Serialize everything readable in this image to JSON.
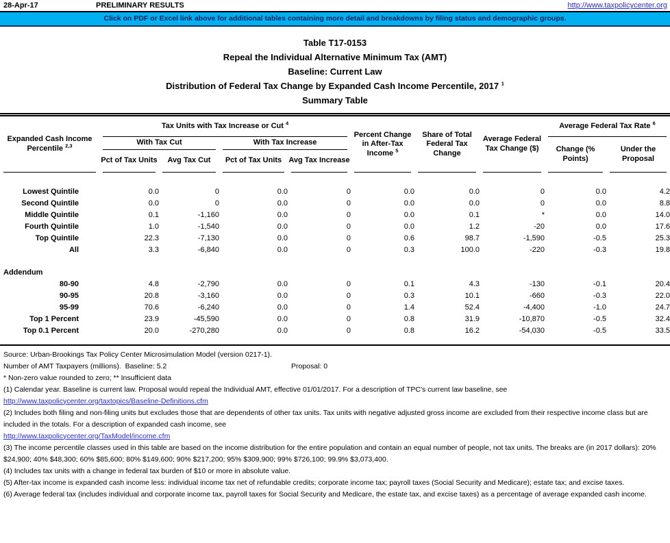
{
  "topbar": {
    "date": "28-Apr-17",
    "preliminary": "PRELIMINARY RESULTS",
    "url": "http://www.taxpolicycenter.org"
  },
  "banner": {
    "text": "Click on PDF or Excel link above for additional tables containing more detail and breakdowns by filing status and demographic groups.",
    "bg_color": "#00b0f0",
    "text_color": "#002060"
  },
  "title": {
    "line1": "Table T17-0153",
    "line2": "Repeal the Individual Alternative Minimum Tax (AMT)",
    "line3": "Baseline: Current Law",
    "line4": "Distribution of Federal Tax Change by Expanded Cash Income Percentile, 2017",
    "line4_sup": "1",
    "line5": "Summary Table"
  },
  "table": {
    "head": {
      "eci_line1": "Expanded Cash Income",
      "eci_line2": "Percentile",
      "eci_sup": "2,3",
      "tax_units_group": "Tax Units with Tax Increase or Cut",
      "tax_units_sup": "4",
      "with_tax_cut": "With Tax Cut",
      "with_tax_increase": "With Tax Increase",
      "pct_of_tax_units_cut": "Pct of Tax Units",
      "avg_tax_cut": "Avg Tax Cut",
      "pct_of_tax_units_inc": "Pct of Tax Units",
      "avg_tax_increase": "Avg Tax Increase",
      "pct_change": "Percent Change in After-Tax Income",
      "pct_change_sup": "5",
      "share_total": "Share of Total Federal Tax Change",
      "avg_fed_change": "Average Federal Tax Change ($)",
      "aftr_group": "Average Federal Tax Rate",
      "aftr_sup": "6",
      "rate_change": "Change (% Points)",
      "rate_under": "Under the Proposal"
    },
    "rows": [
      {
        "label": "Lowest Quintile",
        "cut_pct": "0.0",
        "cut_avg": "0",
        "inc_pct": "0.0",
        "inc_avg": "0",
        "ati_pct": "0.0",
        "share": "0.0",
        "avg_change": "0",
        "rate_pts": "0.0",
        "rate_under": "4.2"
      },
      {
        "label": "Second Quintile",
        "cut_pct": "0.0",
        "cut_avg": "0",
        "inc_pct": "0.0",
        "inc_avg": "0",
        "ati_pct": "0.0",
        "share": "0.0",
        "avg_change": "0",
        "rate_pts": "0.0",
        "rate_under": "8.8"
      },
      {
        "label": "Middle Quintile",
        "cut_pct": "0.1",
        "cut_avg": "-1,160",
        "inc_pct": "0.0",
        "inc_avg": "0",
        "ati_pct": "0.0",
        "share": "0.1",
        "avg_change": "*",
        "rate_pts": "0.0",
        "rate_under": "14.0"
      },
      {
        "label": "Fourth Quintile",
        "cut_pct": "1.0",
        "cut_avg": "-1,540",
        "inc_pct": "0.0",
        "inc_avg": "0",
        "ati_pct": "0.0",
        "share": "1.2",
        "avg_change": "-20",
        "rate_pts": "0.0",
        "rate_under": "17.6"
      },
      {
        "label": "Top Quintile",
        "cut_pct": "22.3",
        "cut_avg": "-7,130",
        "inc_pct": "0.0",
        "inc_avg": "0",
        "ati_pct": "0.6",
        "share": "98.7",
        "avg_change": "-1,590",
        "rate_pts": "-0.5",
        "rate_under": "25.3"
      },
      {
        "label": "All",
        "cut_pct": "3.3",
        "cut_avg": "-6,840",
        "inc_pct": "0.0",
        "inc_avg": "0",
        "ati_pct": "0.3",
        "share": "100.0",
        "avg_change": "-220",
        "rate_pts": "-0.3",
        "rate_under": "19.8"
      }
    ],
    "addendum_label": "Addendum",
    "addendum_rows": [
      {
        "label": "80-90",
        "cut_pct": "4.8",
        "cut_avg": "-2,790",
        "inc_pct": "0.0",
        "inc_avg": "0",
        "ati_pct": "0.1",
        "share": "4.3",
        "avg_change": "-130",
        "rate_pts": "-0.1",
        "rate_under": "20.4"
      },
      {
        "label": "90-95",
        "cut_pct": "20.8",
        "cut_avg": "-3,160",
        "inc_pct": "0.0",
        "inc_avg": "0",
        "ati_pct": "0.3",
        "share": "10.1",
        "avg_change": "-660",
        "rate_pts": "-0.3",
        "rate_under": "22.0"
      },
      {
        "label": "95-99",
        "cut_pct": "70.6",
        "cut_avg": "-6,240",
        "inc_pct": "0.0",
        "inc_avg": "0",
        "ati_pct": "1.4",
        "share": "52.4",
        "avg_change": "-4,400",
        "rate_pts": "-1.0",
        "rate_under": "24.7"
      },
      {
        "label": "Top 1 Percent",
        "cut_pct": "23.9",
        "cut_avg": "-45,590",
        "inc_pct": "0.0",
        "inc_avg": "0",
        "ati_pct": "0.8",
        "share": "31.9",
        "avg_change": "-10,870",
        "rate_pts": "-0.5",
        "rate_under": "32.4"
      },
      {
        "label": "Top 0.1 Percent",
        "cut_pct": "20.0",
        "cut_avg": "-270,280",
        "inc_pct": "0.0",
        "inc_avg": "0",
        "ati_pct": "0.8",
        "share": "16.2",
        "avg_change": "-54,030",
        "rate_pts": "-0.5",
        "rate_under": "33.5"
      }
    ]
  },
  "footer": {
    "source": "Source: Urban-Brookings Tax Policy Center Microsimulation Model (version 0217-1).",
    "amt_line": "Number of AMT Taxpayers (millions).  Baseline: 5.2",
    "proposal": "Proposal: 0",
    "legend": "* Non-zero value rounded to zero; ** Insufficient data",
    "notes": [
      {
        "text": "(1) Calendar year. Baseline is current law. Proposal would repeal the Individual AMT, effective 01/01/2017. For a description of TPC's current law baseline, see",
        "link": "http://www.taxpolicycenter.org/taxtopics/Baseline-Definitions.cfm"
      },
      {
        "text": "(2) Includes both filing and non-filing units but excludes those that are dependents of other tax units. Tax units with negative adjusted gross income are excluded from their respective income class but are included in the totals. For a description of expanded cash income, see",
        "link": "http://www.taxpolicycenter.org/TaxModel/income.cfm"
      },
      {
        "text": "(3) The income percentile classes used in this table are based on the income distribution for the entire population and contain an equal number of people, not tax units. The breaks are (in 2017 dollars): 20% $24,900; 40% $48,300; 60% $85,600; 80% $149,600; 90% $217,200; 95% $309,900; 99% $726,100; 99.9% $3,073,400."
      },
      {
        "text": "(4) Includes tax units with a change in federal tax burden of $10 or more in absolute value."
      },
      {
        "text": "(5) After-tax income is expanded cash income less: individual income tax net of refundable credits; corporate income tax; payroll taxes (Social Security and Medicare); estate tax; and excise taxes."
      },
      {
        "text": "(6) Average federal tax (includes individual and corporate income tax, payroll taxes for Social Security and Medicare, the estate tax, and excise taxes) as a percentage of average expanded cash income."
      }
    ]
  }
}
